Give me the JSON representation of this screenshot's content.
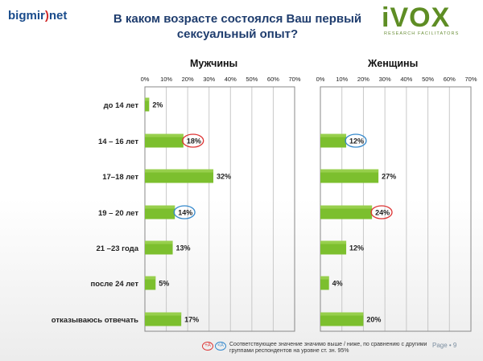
{
  "header": {
    "logo_left_1": "bigmir",
    "logo_left_2": ")",
    "logo_left_3": "net",
    "title": "В каком возрасте состоялся Ваш первый сексуальный опыт?",
    "logo_right_big": "iVOX",
    "logo_right_small": "RESEARCH FACILITATORS"
  },
  "legend": {
    "up_marker": "+A",
    "down_marker": "<A",
    "text": "Соответствующее значение значимо выше / ниже, по сравнению с другими группами респондентов на уровне ст. зн. 95%"
  },
  "footer": {
    "page": "Page • 9"
  },
  "colors": {
    "bar_green": "#7cbf2e",
    "grid_border": "#888888",
    "up_circle": "#dd3333",
    "down_circle": "#3388cc"
  },
  "chart_data": [
    {
      "type": "bar",
      "orientation": "horizontal",
      "title": "Мужчины",
      "categories": [
        "до 14 лет",
        "14 – 16 лет",
        "17–18 лет",
        "19 – 20 лет",
        "21 –23 года",
        "после 24 лет",
        "отказываюсь отвечать"
      ],
      "values": [
        2,
        18,
        32,
        14,
        13,
        5,
        17
      ],
      "value_labels": [
        "2%",
        "18%",
        "32%",
        "14%",
        "13%",
        "5%",
        "17%"
      ],
      "markers": [
        "",
        "up",
        "",
        "down",
        "",
        "",
        ""
      ],
      "xticks": [
        "0%",
        "10%",
        "20%",
        "30%",
        "40%",
        "50%",
        "60%",
        "70%"
      ],
      "xlim": [
        0,
        70
      ],
      "grid": true
    },
    {
      "type": "bar",
      "orientation": "horizontal",
      "title": "Женщины",
      "categories": [
        "до 14 лет",
        "14 – 16 лет",
        "17–18 лет",
        "19 – 20 лет",
        "21 –23 года",
        "после 24 лет",
        "отказываюсь отвечать"
      ],
      "values": [
        0,
        12,
        27,
        24,
        12,
        4,
        20
      ],
      "value_labels": [
        "",
        "12%",
        "27%",
        "24%",
        "12%",
        "4%",
        "20%"
      ],
      "markers": [
        "",
        "down",
        "",
        "up",
        "",
        "",
        ""
      ],
      "xticks": [
        "0%",
        "10%",
        "20%",
        "30%",
        "40%",
        "50%",
        "60%",
        "70%"
      ],
      "xlim": [
        0,
        70
      ],
      "grid": true
    }
  ]
}
